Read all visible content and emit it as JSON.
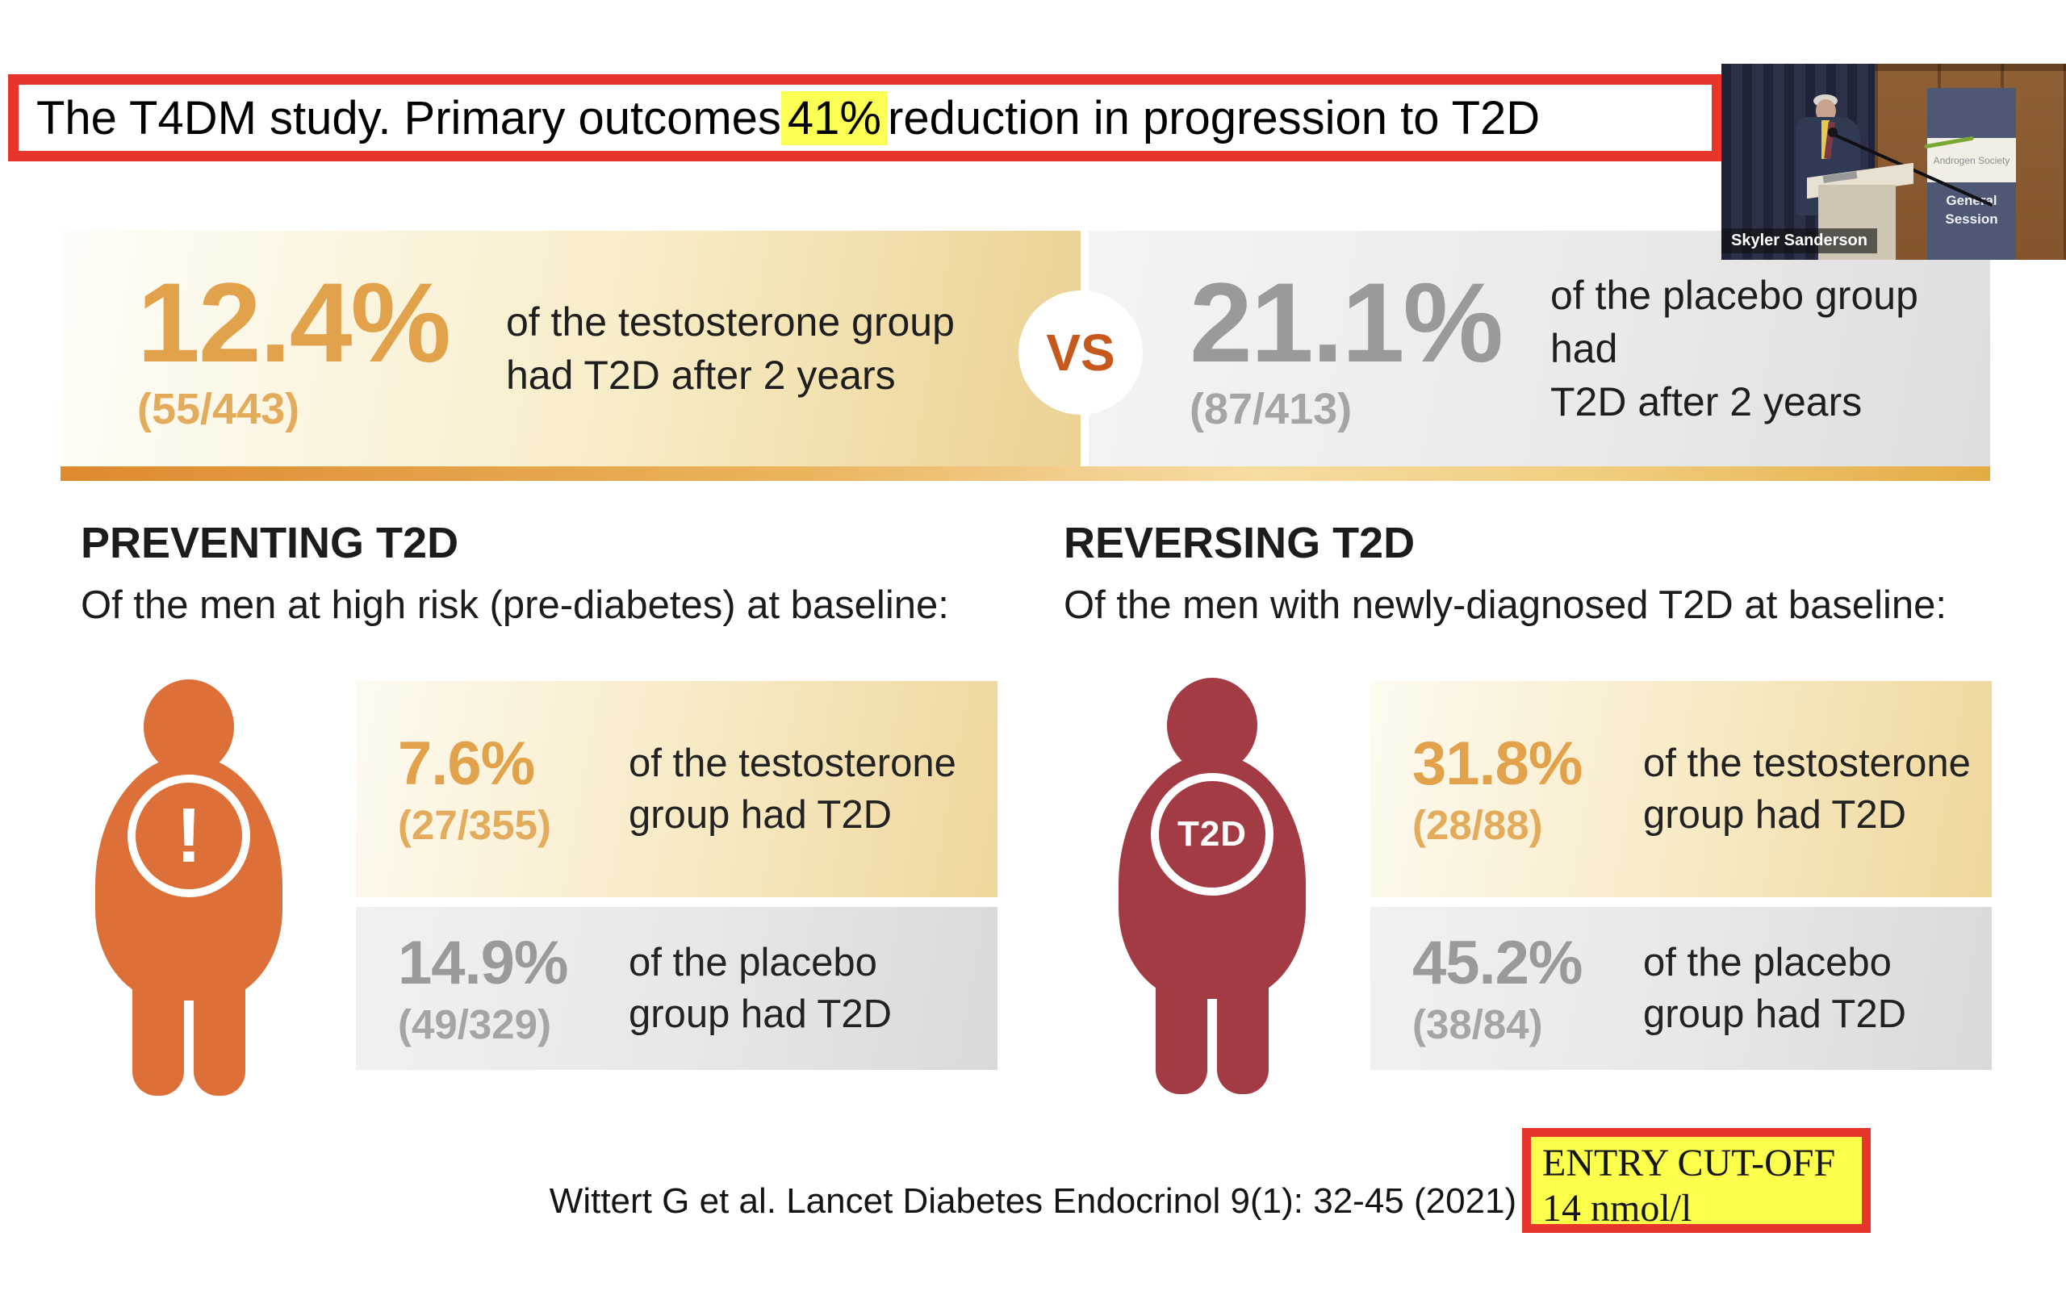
{
  "title": {
    "text_before": "The T4DM study. Primary outcomes ",
    "highlight": "41%",
    "text_after": " reduction in progression to T2D"
  },
  "video_overlay": {
    "speaker_name": "Skyler Sanderson",
    "banner": {
      "logo_text": "Androgen Society",
      "session_line1": "General",
      "session_line2": "Session"
    }
  },
  "top_comparison": {
    "testosterone": {
      "percent": "12.4%",
      "fraction": "(55/443)",
      "desc_line1": "of the testosterone group",
      "desc_line2": "had T2D after 2 years"
    },
    "vs_label": "VS",
    "placebo": {
      "percent": "21.1%",
      "fraction": "(87/413)",
      "desc_line1": "of the placebo group had",
      "desc_line2": "T2D after 2 years"
    }
  },
  "preventing": {
    "heading": "PREVENTING T2D",
    "subheading": "Of the men at high risk (pre-diabetes) at baseline:",
    "figure_badge": "!",
    "testosterone": {
      "percent": "7.6%",
      "fraction": "(27/355)",
      "desc_line1": "of the testosterone",
      "desc_line2": "group had T2D"
    },
    "placebo": {
      "percent": "14.9%",
      "fraction": "(49/329)",
      "desc_line1": "of the placebo",
      "desc_line2": "group had T2D"
    }
  },
  "reversing": {
    "heading": "REVERSING T2D",
    "subheading": "Of the men with newly-diagnosed T2D at baseline:",
    "figure_badge": "T2D",
    "testosterone": {
      "percent": "31.8%",
      "fraction": "(28/88)",
      "desc_line1": "of the testosterone",
      "desc_line2": "group had T2D"
    },
    "placebo": {
      "percent": "45.2%",
      "fraction": "(38/84)",
      "desc_line1": "of the placebo",
      "desc_line2": "group had T2D"
    }
  },
  "footer": {
    "citation": "Wittert G et al. Lancet Diabetes Endocrinol 9(1): 32-45 (2021)",
    "callout_line1": "ENTRY CUT-OFF",
    "callout_line2": "14 nmol/l"
  },
  "colors": {
    "annotation_red": "#e8352b",
    "title_highlight_yellow": "#fcff54",
    "callout_yellow": "#fbff4b",
    "figure_orange": "#dc7038",
    "figure_maroon": "#a23b44",
    "stat_orange": "#e2a24c",
    "stat_gray": "#9a9a9a",
    "vs_orange": "#c7581d"
  }
}
